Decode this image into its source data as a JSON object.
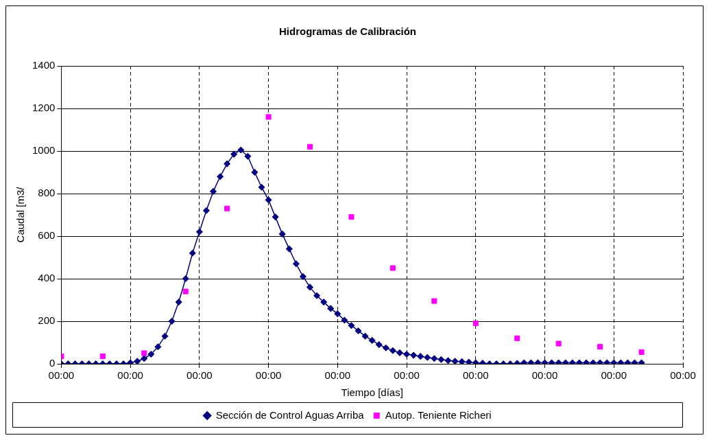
{
  "chart_data": {
    "type": "line",
    "title": "Hidrogramas de Calibración",
    "xlabel": "Tiempo [días]",
    "ylabel": "Caudal [m3/",
    "xlim": [
      0,
      9
    ],
    "xticks": [
      {
        "value": 0,
        "label": "00:00"
      },
      {
        "value": 1,
        "label": "00:00"
      },
      {
        "value": 2,
        "label": "00:00"
      },
      {
        "value": 3,
        "label": "00:00"
      },
      {
        "value": 4,
        "label": "00:00"
      },
      {
        "value": 5,
        "label": "00:00"
      },
      {
        "value": 6,
        "label": "00:00"
      },
      {
        "value": 7,
        "label": "00:00"
      },
      {
        "value": 8,
        "label": "00:00"
      },
      {
        "value": 9,
        "label": "00:00"
      }
    ],
    "ylim": [
      0,
      1400
    ],
    "yticks": [
      0,
      200,
      400,
      600,
      800,
      1000,
      1200,
      1400
    ],
    "grid": true,
    "legend": "bottom",
    "series": [
      {
        "name": "Sección de Control Aguas Arriba",
        "color": "#000080",
        "marker": "diamond",
        "line_style": "solid",
        "x": [
          0,
          0.1,
          0.2,
          0.3,
          0.4,
          0.5,
          0.6,
          0.7,
          0.8,
          0.9,
          1.0,
          1.1,
          1.2,
          1.3,
          1.4,
          1.5,
          1.6,
          1.7,
          1.8,
          1.9,
          2.0,
          2.1,
          2.2,
          2.3,
          2.4,
          2.5,
          2.6,
          2.7,
          2.8,
          2.9,
          3.0,
          3.1,
          3.2,
          3.3,
          3.4,
          3.5,
          3.6,
          3.7,
          3.8,
          3.9,
          4.0,
          4.1,
          4.2,
          4.3,
          4.4,
          4.5,
          4.6,
          4.7,
          4.8,
          4.9,
          5.0,
          5.1,
          5.2,
          5.3,
          5.4,
          5.5,
          5.6,
          5.7,
          5.8,
          5.9,
          6.0,
          6.1,
          6.2,
          6.3,
          6.4,
          6.5,
          6.6,
          6.7,
          6.8,
          6.9,
          7.0,
          7.1,
          7.2,
          7.3,
          7.4,
          7.5,
          7.6,
          7.7,
          7.8,
          7.9,
          8.0,
          8.1,
          8.2,
          8.3,
          8.4
        ],
        "values": [
          0,
          0,
          0,
          0,
          0,
          0,
          0,
          0,
          0,
          0,
          5,
          12,
          25,
          45,
          80,
          130,
          200,
          290,
          400,
          520,
          620,
          720,
          810,
          880,
          940,
          985,
          1005,
          975,
          900,
          830,
          770,
          690,
          610,
          540,
          470,
          410,
          360,
          320,
          290,
          260,
          235,
          205,
          180,
          155,
          130,
          110,
          90,
          75,
          62,
          52,
          45,
          40,
          35,
          30,
          25,
          20,
          15,
          12,
          10,
          8,
          5,
          3,
          0,
          0,
          0,
          0,
          2,
          5,
          5,
          5,
          5,
          5,
          5,
          5,
          5,
          5,
          5,
          5,
          5,
          5,
          5,
          5,
          5,
          5,
          5
        ]
      },
      {
        "name": "Autop. Teniente Richeri",
        "type": "scatter",
        "color": "#ff00ff",
        "marker": "square",
        "x": [
          0,
          0.6,
          1.2,
          1.8,
          2.4,
          3.0,
          3.6,
          4.2,
          4.8,
          5.4,
          6.0,
          6.6,
          7.2,
          7.8,
          8.4
        ],
        "values": [
          35,
          35,
          50,
          340,
          730,
          1160,
          1020,
          690,
          450,
          295,
          190,
          120,
          95,
          80,
          55
        ]
      }
    ]
  }
}
